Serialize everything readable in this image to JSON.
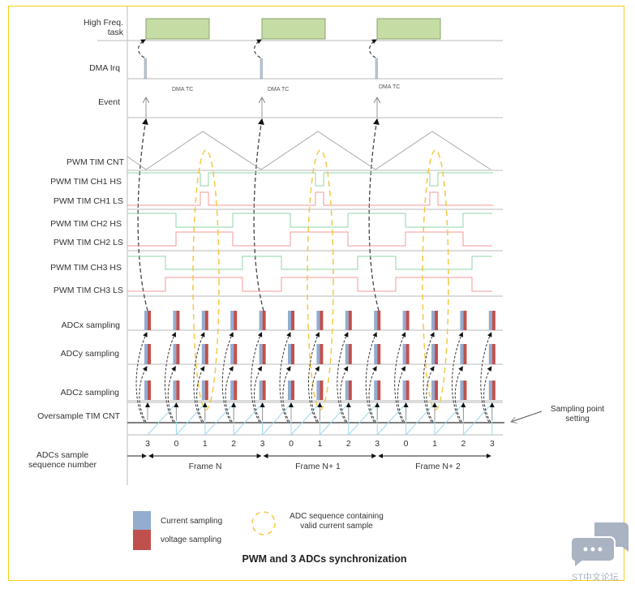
{
  "rows": {
    "high_freq_task": "High Freq.\ntask",
    "dma_irq": "DMA Irq",
    "event": "Event",
    "pwm_cnt": "PWM TIM CNT",
    "ch1_hs": "PWM TIM CH1 HS",
    "ch1_ls": "PWM TIM CH1 LS",
    "ch2_hs": "PWM TIM CH2 HS",
    "ch2_ls": "PWM TIM CH2 LS",
    "ch3_hs": "PWM TIM CH3 HS",
    "ch3_ls": "PWM TIM CH3 LS",
    "adcx": "ADCx sampling",
    "adcy": "ADCy sampling",
    "adcz": "ADCz sampling",
    "oversample": "Oversample TIM CNT",
    "sequence": "ADCs sample\nsequence number"
  },
  "event_label": "DMA TC",
  "sequence_numbers": [
    "3",
    "0",
    "1",
    "2",
    "3",
    "0",
    "1",
    "2",
    "3",
    "0",
    "1",
    "2",
    "3"
  ],
  "frames": [
    "Frame N",
    "Frame N+ 1",
    "Frame N+ 2"
  ],
  "sampling_point_label": "Sampling point\nsetting",
  "legend": {
    "current": "Current sampling",
    "voltage": "voltage sampling",
    "valid": "ADC sequence containing\nvalid current sample"
  },
  "title": "PWM and 3 ADCs synchronization",
  "watermark": "ST中文论坛",
  "colors": {
    "task": "#c6dca5",
    "current": "#93acd0",
    "voltage": "#c0504d",
    "hs": "#8fd6a8",
    "ls": "#f39a9a",
    "valid_ellipse": "#f5c842",
    "oversample": "#9cd8ea",
    "border": "#f5cc1a"
  }
}
